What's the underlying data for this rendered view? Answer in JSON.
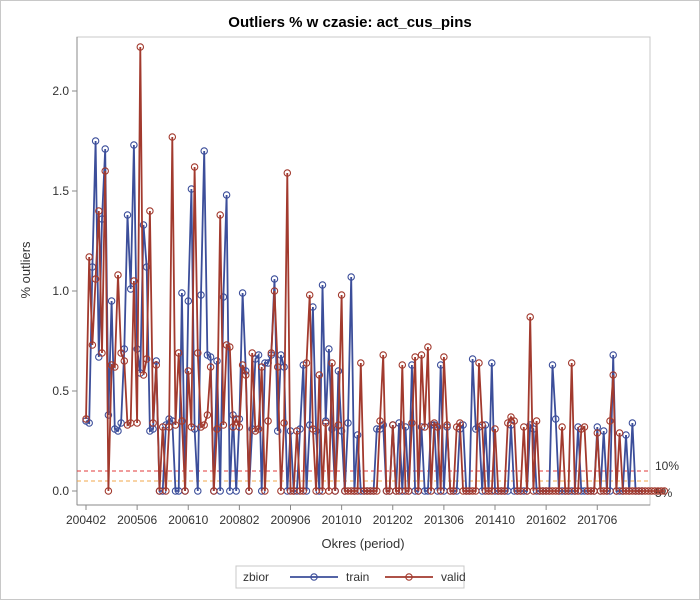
{
  "colors": {
    "train": "#3c4e9a",
    "valid": "#a23a2e",
    "ref10": "#e23a3a",
    "ref5": "#f2a74b",
    "axis": "#888888",
    "frame": "#c8c8c8"
  },
  "chart_data": {
    "type": "line",
    "title": "Outliers % w czasie: act_cus_pins",
    "xlabel": "Okres (period)",
    "ylabel": "% outliers",
    "ylim": [
      -0.05,
      2.25
    ],
    "yticks": [
      0.0,
      0.5,
      1.0,
      1.5,
      2.0
    ],
    "ytick_labels": [
      "0.0",
      "0.5",
      "1.0",
      "1.5",
      "2.0"
    ],
    "xticks": [
      "200402",
      "200506",
      "200610",
      "200802",
      "200906",
      "201010",
      "201202",
      "201306",
      "201410",
      "201602",
      "201706"
    ],
    "grid": false,
    "legend": {
      "title": "zbior",
      "position": "bottom"
    },
    "reference_lines": [
      {
        "label": "10%",
        "value": 0.1,
        "style": "dashed"
      },
      {
        "label": "5%",
        "value": 0.05,
        "style": "dashed"
      }
    ],
    "series": [
      {
        "name": "train",
        "values": [
          0.35,
          0.34,
          1.12,
          1.75,
          0.67,
          1.36,
          1.71,
          0.38,
          0.95,
          0.31,
          0.3,
          0.34,
          0.71,
          1.38,
          1.01,
          1.73,
          0.71,
          0.59,
          1.33,
          1.12,
          0.3,
          0.31,
          0.65,
          0.0,
          0.0,
          0.33,
          0.36,
          0.35,
          0.0,
          0.0,
          0.99,
          0.0,
          0.95,
          1.51,
          0.31,
          0.0,
          0.98,
          1.7,
          0.68,
          0.67,
          0.0,
          0.65,
          0.0,
          0.97,
          1.48,
          0.0,
          0.38,
          0.0,
          0.36,
          0.99,
          0.6,
          0.0,
          0.31,
          0.66,
          0.68,
          0.0,
          0.64,
          0.64,
          0.68,
          1.06,
          0.3,
          0.68,
          0.62,
          0.0,
          0.3,
          0.0,
          0.0,
          0.31,
          0.63,
          0.0,
          0.33,
          0.92,
          0.3,
          0.0,
          1.03,
          0.35,
          0.71,
          0.31,
          0.0,
          0.6,
          0.3,
          0.0,
          0.34,
          1.07,
          0.0,
          0.28,
          0.0,
          0.0,
          0.0,
          0.0,
          0.0,
          0.31,
          0.31,
          0.33,
          0.0,
          0.0,
          0.33,
          0.0,
          0.34,
          0.0,
          0.32,
          0.0,
          0.63,
          0.0,
          0.0,
          0.32,
          0.0,
          0.0,
          0.33,
          0.33,
          0.0,
          0.63,
          0.0,
          0.32,
          0.0,
          0.0,
          0.0,
          0.31,
          0.33,
          0.0,
          0.0,
          0.66,
          0.31,
          0.32,
          0.0,
          0.33,
          0.0,
          0.64,
          0.0,
          0.0,
          0.0,
          0.0,
          0.0,
          0.33,
          0.0,
          0.0,
          0.0,
          0.0,
          0.0,
          0.33,
          0.31,
          0.0,
          0.0,
          0.0,
          0.0,
          0.0,
          0.63,
          0.36,
          0.0,
          0.0,
          0.0,
          0.0,
          0.0,
          0.0,
          0.32,
          0.0,
          0.0,
          0.0,
          0.0,
          0.0,
          0.32,
          0.0,
          0.3,
          0.0,
          0.0,
          0.68,
          0.0,
          0.0,
          0.0,
          0.28,
          0.0,
          0.34,
          0.0,
          0.0,
          0.0
        ],
        "name_visible": true
      },
      {
        "name": "valid",
        "values": [
          0.36,
          1.17,
          0.73,
          1.06,
          1.4,
          0.69,
          1.6,
          0.0,
          0.63,
          0.62,
          1.08,
          0.69,
          0.65,
          0.33,
          0.34,
          1.05,
          0.34,
          2.22,
          0.58,
          0.66,
          1.4,
          0.34,
          0.63,
          0.0,
          0.32,
          0.0,
          0.32,
          1.77,
          0.33,
          0.69,
          0.35,
          0.0,
          0.6,
          0.32,
          1.62,
          0.69,
          0.32,
          0.33,
          0.38,
          0.62,
          0.0,
          0.31,
          1.38,
          0.33,
          0.73,
          0.72,
          0.32,
          0.36,
          0.32,
          0.63,
          0.58,
          0.0,
          0.69,
          0.3,
          0.31,
          0.62,
          0.0,
          0.35,
          0.69,
          1.0,
          0.62,
          0.0,
          0.34,
          1.59,
          0.0,
          0.0,
          0.3,
          0.0,
          0.0,
          0.64,
          0.98,
          0.31,
          0.0,
          0.58,
          0.0,
          0.34,
          0.0,
          0.64,
          0.0,
          0.33,
          0.98,
          0.0,
          0.0,
          0.0,
          0.0,
          0.0,
          0.64,
          0.0,
          0.0,
          0.0,
          0.0,
          0.0,
          0.35,
          0.68,
          0.0,
          0.0,
          0.33,
          0.0,
          0.0,
          0.63,
          0.0,
          0.0,
          0.34,
          0.67,
          0.0,
          0.68,
          0.32,
          0.72,
          0.0,
          0.34,
          0.32,
          0.0,
          0.67,
          0.33,
          0.0,
          0.0,
          0.32,
          0.34,
          0.0,
          0.0,
          0.0,
          0.0,
          0.0,
          0.64,
          0.33,
          0.0,
          0.0,
          0.0,
          0.31,
          0.0,
          0.0,
          0.0,
          0.34,
          0.37,
          0.35,
          0.0,
          0.0,
          0.32,
          0.0,
          0.87,
          0.0,
          0.35,
          0.0,
          0.0,
          0.0,
          0.0,
          0.0,
          0.0,
          0.0,
          0.32,
          0.0,
          0.0,
          0.64,
          0.0,
          0.0,
          0.31,
          0.32,
          0.0,
          0.0,
          0.0,
          0.29,
          0.0,
          0.0,
          0.0,
          0.35,
          0.58,
          0.0,
          0.29,
          0.0,
          0.0,
          0.0,
          0.0,
          0.0,
          0.0,
          0.0,
          0.0,
          0.0,
          0.0,
          0.0,
          0.0,
          0.0,
          0.0
        ]
      }
    ]
  }
}
